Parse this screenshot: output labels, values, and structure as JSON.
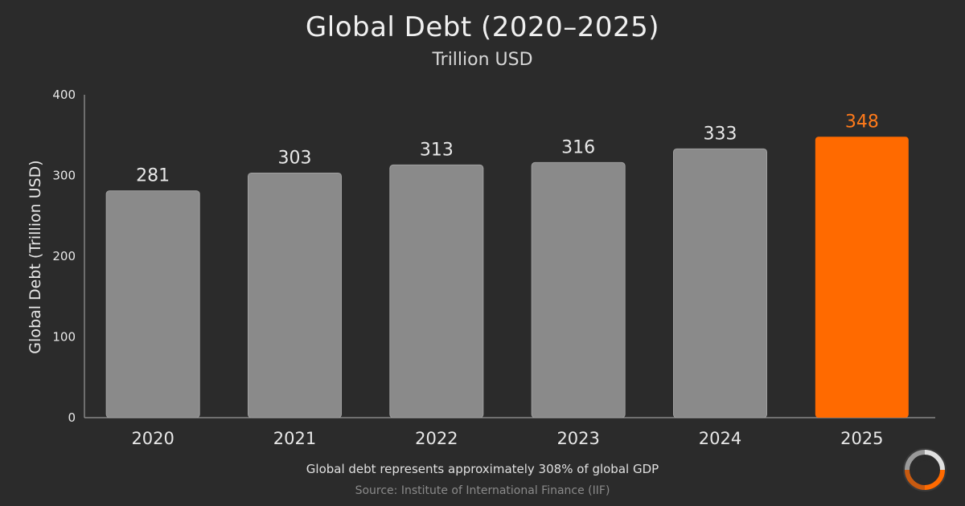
{
  "header": {
    "title": "Global Debt (2020–2025)",
    "subtitle": "Trillion USD"
  },
  "chart_data": {
    "type": "bar",
    "title": "Global Debt (2020–2025)",
    "subtitle": "Trillion USD",
    "xlabel": "",
    "ylabel": "Global Debt (Trillion USD)",
    "categories": [
      "2020",
      "2021",
      "2022",
      "2023",
      "2024",
      "2025"
    ],
    "values": [
      281,
      303,
      313,
      316,
      333,
      348
    ],
    "data_labels": [
      "281",
      "303",
      "313",
      "316",
      "333",
      "348"
    ],
    "ylim": [
      0,
      400
    ],
    "yticks": [
      0,
      100,
      200,
      300,
      400
    ],
    "grid": false,
    "colors": {
      "bar": "#8a8a8a",
      "highlight": "#ff6a00",
      "highlight_label": "#ff7a1a",
      "axis": "#9a9a9a",
      "text": "#e8e8e8"
    },
    "highlight_index": 5
  },
  "footer": {
    "note": "Global debt represents approximately 308% of global GDP",
    "source": "Source: Institute of International Finance (IIF)"
  },
  "logo": {
    "icon": "circular-segments-logo-icon"
  }
}
